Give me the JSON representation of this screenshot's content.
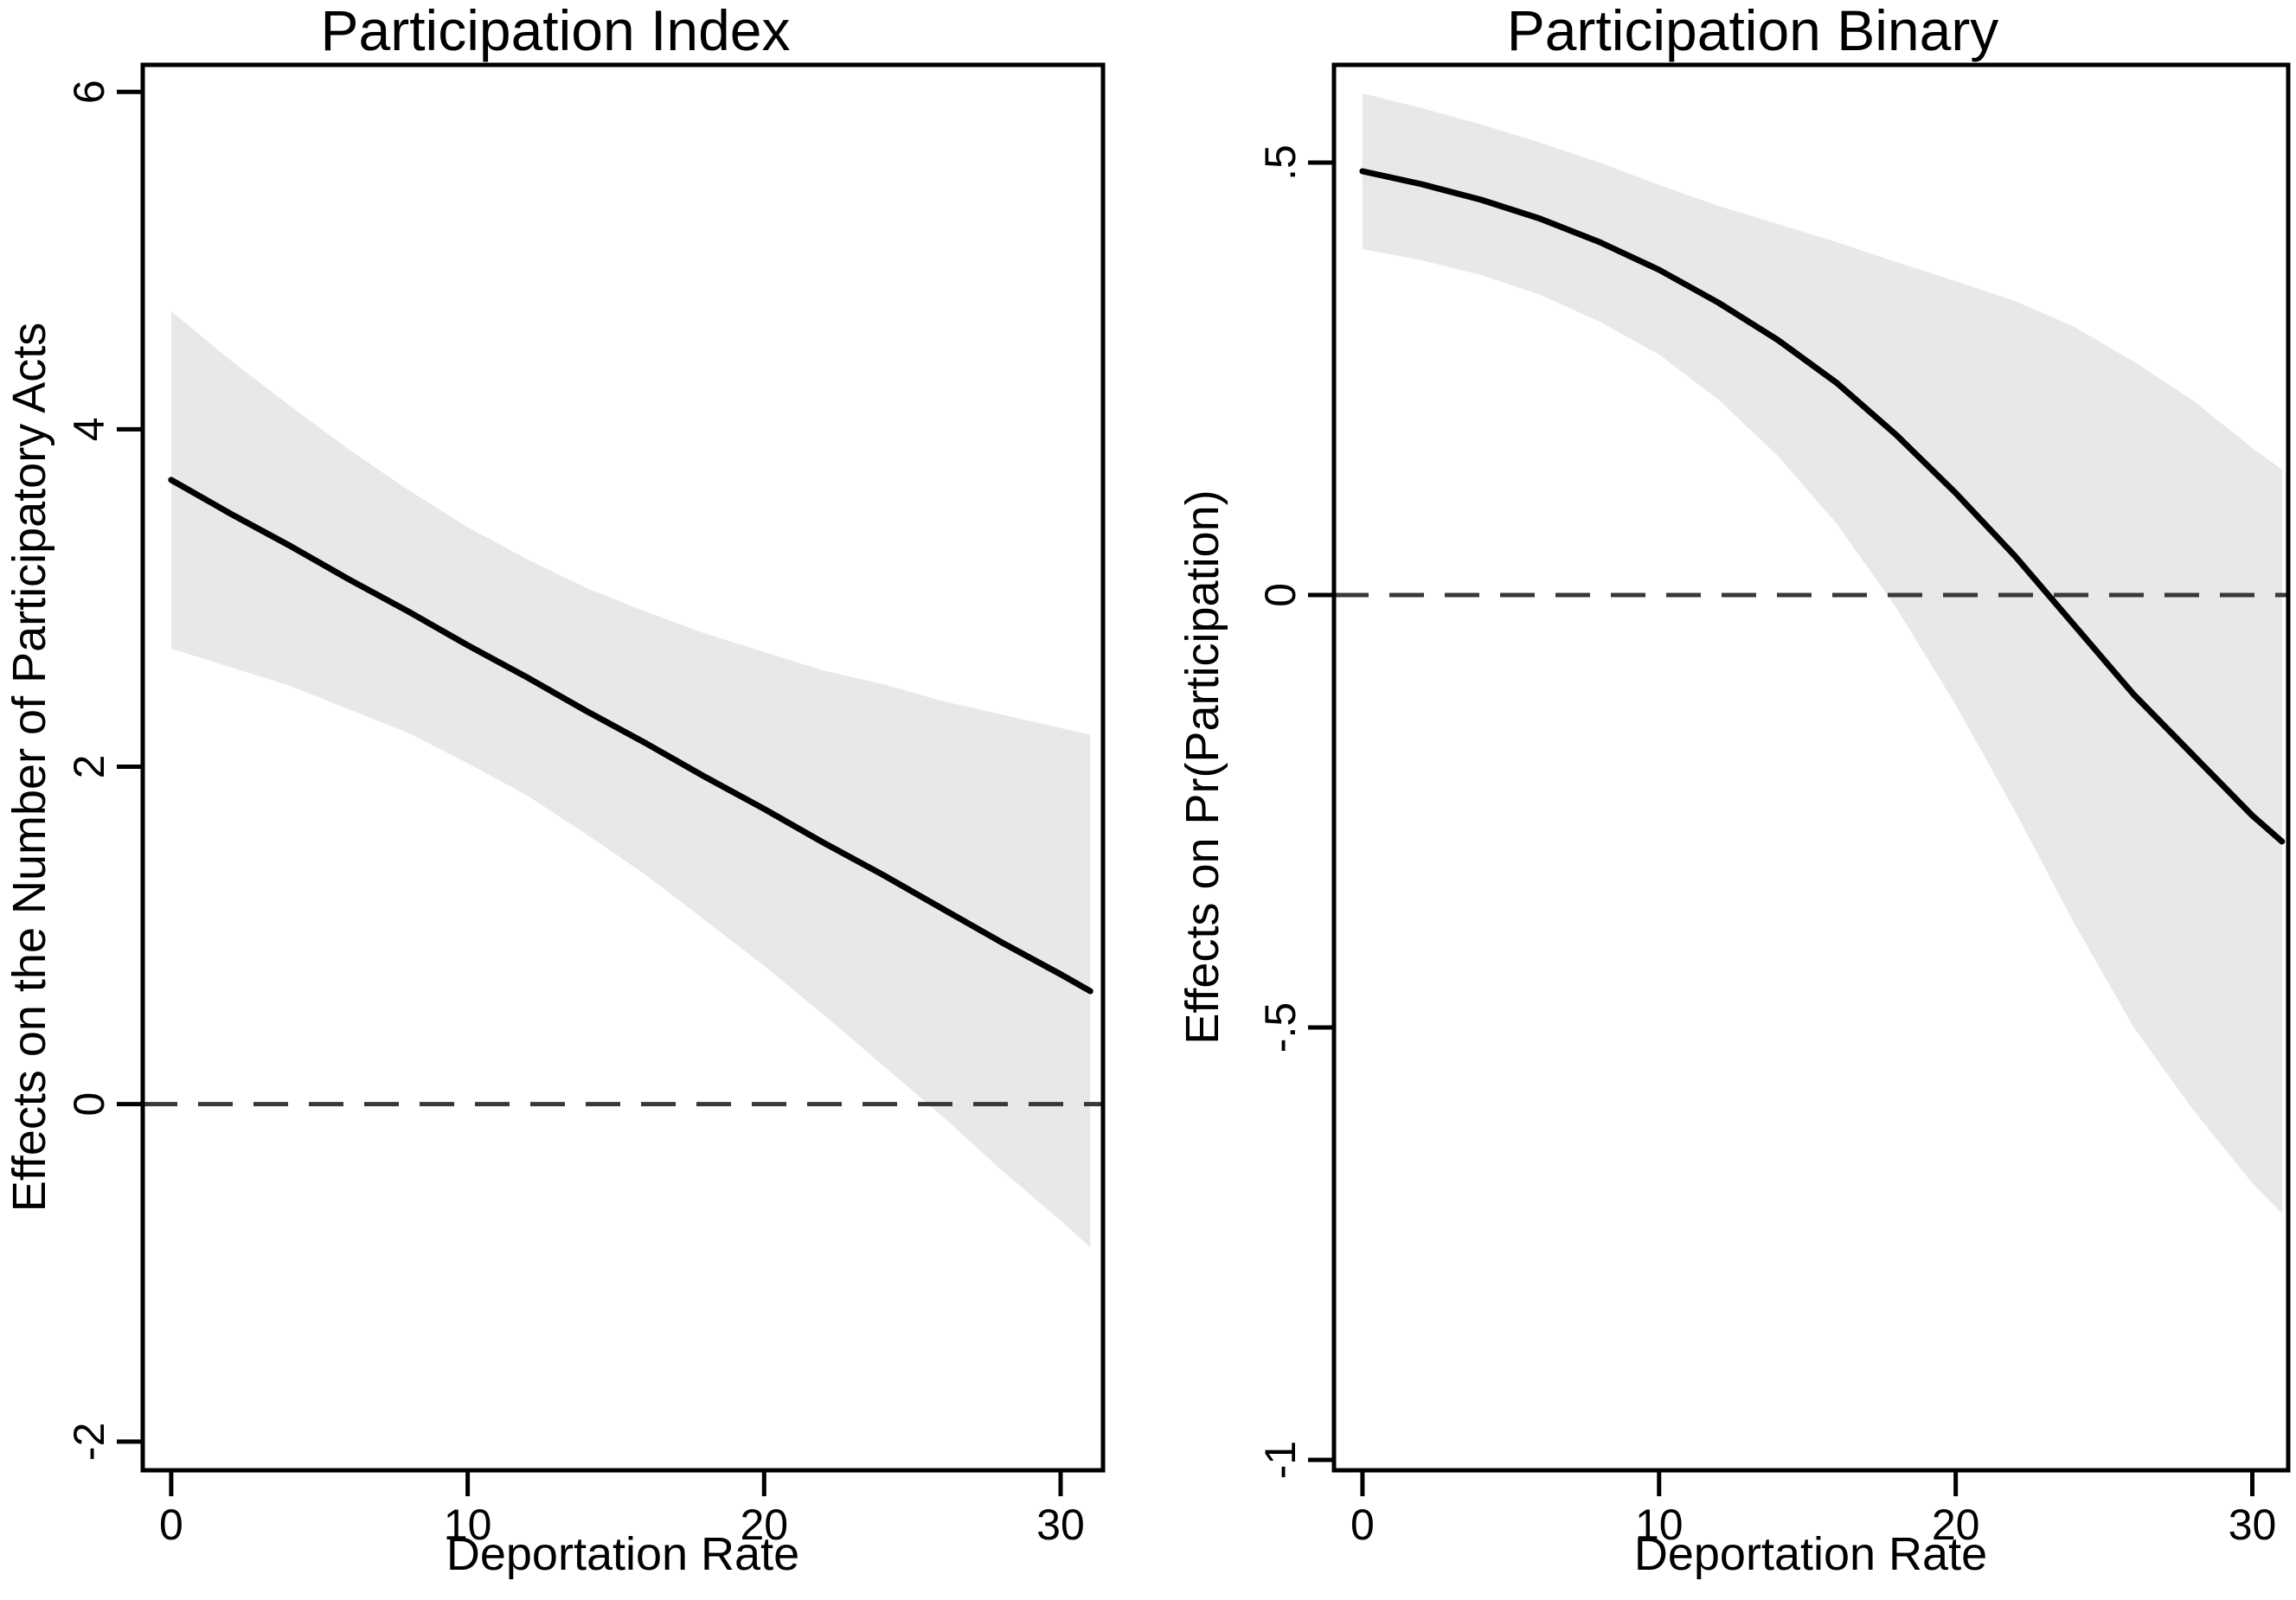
{
  "figure": {
    "background": "#ffffff",
    "text_color": "#000000"
  },
  "chart_data": [
    {
      "id": "index",
      "type": "line",
      "title": "Participation Index",
      "xlabel": "Deportation Rate",
      "ylabel": "Effects on the Number of Participatory Acts",
      "legend": "none",
      "grid": false,
      "xlim": [
        -0.96,
        31.43
      ],
      "ylim": [
        -2.17,
        6.16
      ],
      "xticks": [
        {
          "v": 0,
          "label": "0"
        },
        {
          "v": 10,
          "label": "10"
        },
        {
          "v": 20,
          "label": "20"
        },
        {
          "v": 30,
          "label": "30"
        }
      ],
      "yticks": [
        {
          "v": -2,
          "label": "-2"
        },
        {
          "v": 0,
          "label": "0"
        },
        {
          "v": 2,
          "label": "2"
        },
        {
          "v": 4,
          "label": "4"
        },
        {
          "v": 6,
          "label": "6"
        }
      ],
      "zero_line": 0,
      "x": [
        0,
        2,
        4,
        6,
        8,
        10,
        12,
        14,
        16,
        18,
        20,
        22,
        24,
        26,
        28,
        30,
        31
      ],
      "line": [
        3.7,
        3.5,
        3.31,
        3.11,
        2.92,
        2.72,
        2.53,
        2.33,
        2.14,
        1.94,
        1.75,
        1.55,
        1.36,
        1.16,
        0.96,
        0.77,
        0.67
      ],
      "ci_upper": [
        4.7,
        4.41,
        4.14,
        3.88,
        3.64,
        3.42,
        3.23,
        3.06,
        2.92,
        2.79,
        2.68,
        2.57,
        2.49,
        2.39,
        2.31,
        2.23,
        2.19
      ],
      "ci_lower": [
        2.7,
        2.59,
        2.48,
        2.34,
        2.2,
        2.02,
        1.83,
        1.6,
        1.36,
        1.09,
        0.82,
        0.53,
        0.23,
        -0.07,
        -0.39,
        -0.69,
        -0.85
      ],
      "band_color": "#e8e8e8",
      "line_color": "#000000",
      "zero_line_color": "#383838",
      "axis_color": "#000000"
    },
    {
      "id": "binary",
      "type": "line",
      "title": "Participation Binary",
      "xlabel": "Deportation Rate",
      "ylabel": "Effects on Pr(Participation)",
      "legend": "none",
      "grid": false,
      "xlim": [
        -0.96,
        31.21
      ],
      "ylim": [
        -1.012,
        0.613
      ],
      "xticks": [
        {
          "v": 0,
          "label": "0"
        },
        {
          "v": 10,
          "label": "10"
        },
        {
          "v": 20,
          "label": "20"
        },
        {
          "v": 30,
          "label": "30"
        }
      ],
      "yticks": [
        {
          "v": -1,
          "label": "-1"
        },
        {
          "v": -0.5,
          "label": "-.5"
        },
        {
          "v": 0,
          "label": "0"
        },
        {
          "v": 0.5,
          "label": ".5"
        }
      ],
      "zero_line": 0,
      "x": [
        0,
        2,
        4,
        6,
        8,
        10,
        12,
        14,
        16,
        18,
        20,
        22,
        24,
        26,
        28,
        30,
        31
      ],
      "line": [
        0.49,
        0.475,
        0.457,
        0.435,
        0.408,
        0.376,
        0.338,
        0.295,
        0.245,
        0.185,
        0.118,
        0.045,
        -0.035,
        -0.115,
        -0.185,
        -0.255,
        -0.285
      ],
      "ci_upper": [
        0.58,
        0.563,
        0.544,
        0.523,
        0.5,
        0.474,
        0.45,
        0.429,
        0.408,
        0.385,
        0.363,
        0.34,
        0.31,
        0.27,
        0.225,
        0.17,
        0.145
      ],
      "ci_lower": [
        0.4,
        0.387,
        0.37,
        0.347,
        0.316,
        0.278,
        0.226,
        0.161,
        0.082,
        -0.015,
        -0.127,
        -0.25,
        -0.38,
        -0.5,
        -0.595,
        -0.68,
        -0.715
      ],
      "band_color": "#e8e8e8",
      "line_color": "#000000",
      "zero_line_color": "#383838",
      "axis_color": "#000000"
    }
  ]
}
